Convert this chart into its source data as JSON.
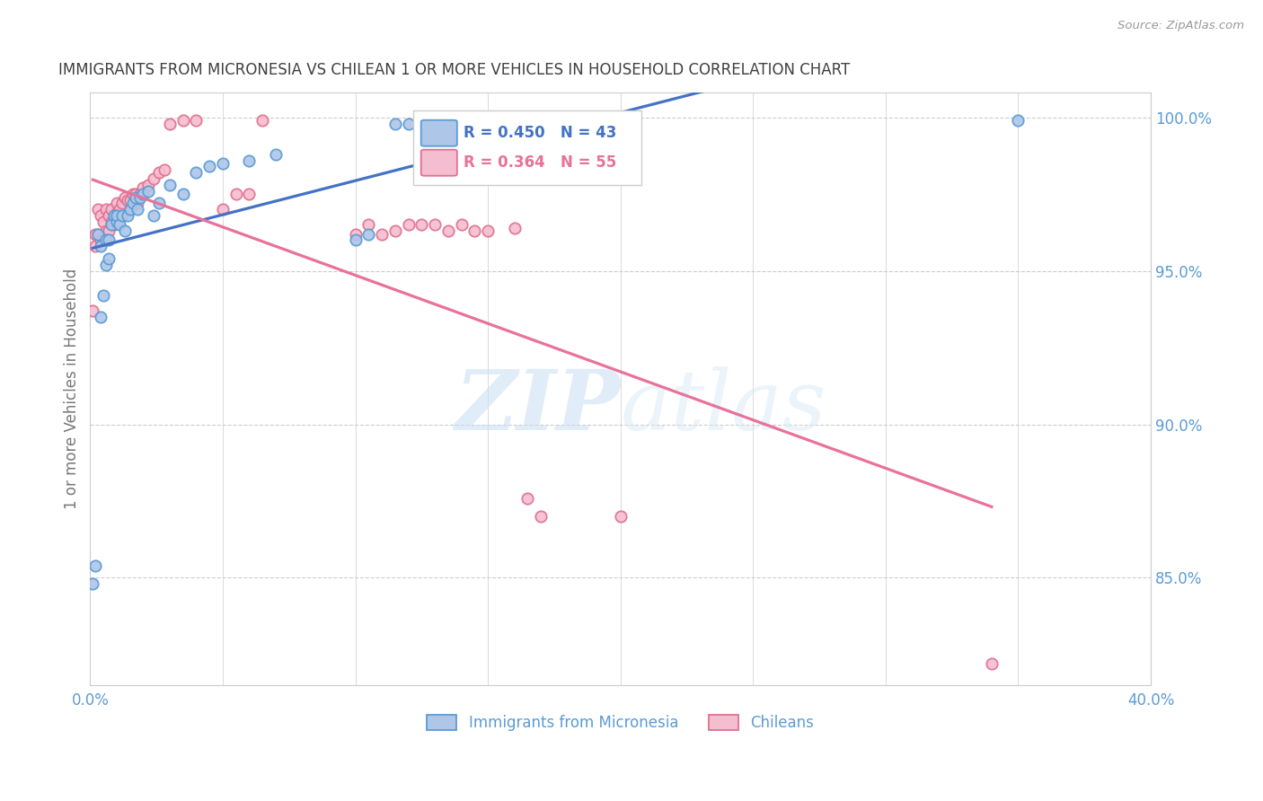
{
  "title": "IMMIGRANTS FROM MICRONESIA VS CHILEAN 1 OR MORE VEHICLES IN HOUSEHOLD CORRELATION CHART",
  "source": "Source: ZipAtlas.com",
  "ylabel": "1 or more Vehicles in Household",
  "xlim": [
    0.0,
    0.4
  ],
  "ylim": [
    0.815,
    1.008
  ],
  "xticks": [
    0.0,
    0.05,
    0.1,
    0.15,
    0.2,
    0.25,
    0.3,
    0.35,
    0.4
  ],
  "xticklabels": [
    "0.0%",
    "",
    "",
    "",
    "",
    "",
    "",
    "",
    "40.0%"
  ],
  "yticks_right": [
    0.85,
    0.9,
    0.95,
    1.0
  ],
  "ytick_right_labels": [
    "85.0%",
    "90.0%",
    "95.0%",
    "100.0%"
  ],
  "blue_color": "#aec6e8",
  "blue_edge": "#5b9bd5",
  "pink_color": "#f5bdd0",
  "pink_edge": "#e07090",
  "blue_line_color": "#4472c4",
  "pink_line_color": "#e8729a",
  "legend_R_blue": "R = 0.450",
  "legend_N_blue": "N = 43",
  "legend_R_pink": "R = 0.364",
  "legend_N_pink": "N = 55",
  "legend_label_blue": "Immigrants from Micronesia",
  "legend_label_pink": "Chileans",
  "watermark_zip": "ZIP",
  "watermark_atlas": "atlas",
  "blue_x": [
    0.001,
    0.002,
    0.003,
    0.004,
    0.004,
    0.005,
    0.006,
    0.006,
    0.007,
    0.007,
    0.008,
    0.009,
    0.01,
    0.01,
    0.011,
    0.012,
    0.013,
    0.014,
    0.015,
    0.016,
    0.017,
    0.018,
    0.019,
    0.02,
    0.022,
    0.024,
    0.026,
    0.03,
    0.035,
    0.04,
    0.045,
    0.05,
    0.06,
    0.07,
    0.1,
    0.105,
    0.115,
    0.12,
    0.125,
    0.13,
    0.135,
    0.14,
    0.35
  ],
  "blue_y": [
    0.848,
    0.854,
    0.962,
    0.935,
    0.958,
    0.942,
    0.952,
    0.96,
    0.954,
    0.96,
    0.965,
    0.968,
    0.966,
    0.968,
    0.965,
    0.968,
    0.963,
    0.968,
    0.97,
    0.972,
    0.974,
    0.97,
    0.974,
    0.975,
    0.976,
    0.968,
    0.972,
    0.978,
    0.975,
    0.982,
    0.984,
    0.985,
    0.986,
    0.988,
    0.96,
    0.962,
    0.998,
    0.998,
    0.998,
    0.998,
    0.998,
    0.998,
    0.999
  ],
  "pink_x": [
    0.001,
    0.002,
    0.002,
    0.003,
    0.003,
    0.004,
    0.004,
    0.005,
    0.005,
    0.006,
    0.006,
    0.007,
    0.007,
    0.008,
    0.008,
    0.009,
    0.01,
    0.01,
    0.011,
    0.012,
    0.013,
    0.014,
    0.015,
    0.016,
    0.017,
    0.018,
    0.019,
    0.02,
    0.022,
    0.024,
    0.026,
    0.028,
    0.03,
    0.035,
    0.04,
    0.05,
    0.055,
    0.06,
    0.065,
    0.1,
    0.105,
    0.11,
    0.115,
    0.12,
    0.125,
    0.13,
    0.135,
    0.14,
    0.145,
    0.15,
    0.16,
    0.165,
    0.17,
    0.2,
    0.34
  ],
  "pink_y": [
    0.937,
    0.958,
    0.962,
    0.962,
    0.97,
    0.96,
    0.968,
    0.96,
    0.966,
    0.963,
    0.97,
    0.963,
    0.968,
    0.966,
    0.97,
    0.965,
    0.969,
    0.972,
    0.97,
    0.972,
    0.974,
    0.973,
    0.973,
    0.975,
    0.975,
    0.972,
    0.975,
    0.977,
    0.978,
    0.98,
    0.982,
    0.983,
    0.998,
    0.999,
    0.999,
    0.97,
    0.975,
    0.975,
    0.999,
    0.962,
    0.965,
    0.962,
    0.963,
    0.965,
    0.965,
    0.965,
    0.963,
    0.965,
    0.963,
    0.963,
    0.964,
    0.876,
    0.87,
    0.87,
    0.822
  ],
  "background_color": "#ffffff",
  "grid_color": "#cccccc",
  "axis_label_color": "#5b9bd5",
  "title_color": "#404040",
  "marker_size": 80
}
